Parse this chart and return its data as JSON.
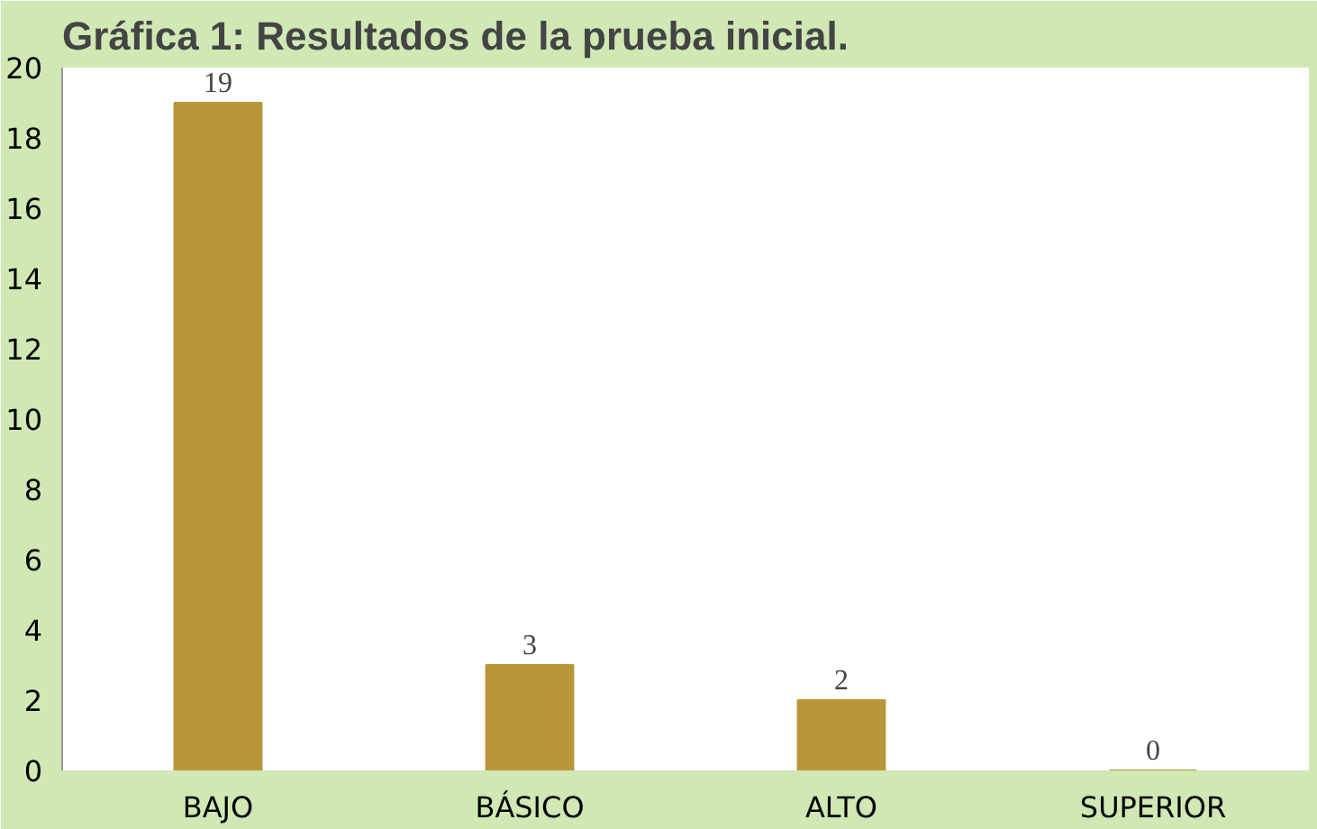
{
  "chart_data": {
    "type": "bar",
    "title": "Gráfica 1: Resultados de la prueba inicial.",
    "categories": [
      "BAJO",
      "BÁSICO",
      "ALTO",
      "SUPERIOR"
    ],
    "values": [
      19,
      3,
      2,
      0
    ],
    "color": "#b8963a",
    "ylim": [
      0,
      20
    ],
    "yticks": [
      0,
      2,
      4,
      6,
      8,
      10,
      12,
      14,
      16,
      18,
      20
    ],
    "grid": false,
    "data_labels": true
  }
}
